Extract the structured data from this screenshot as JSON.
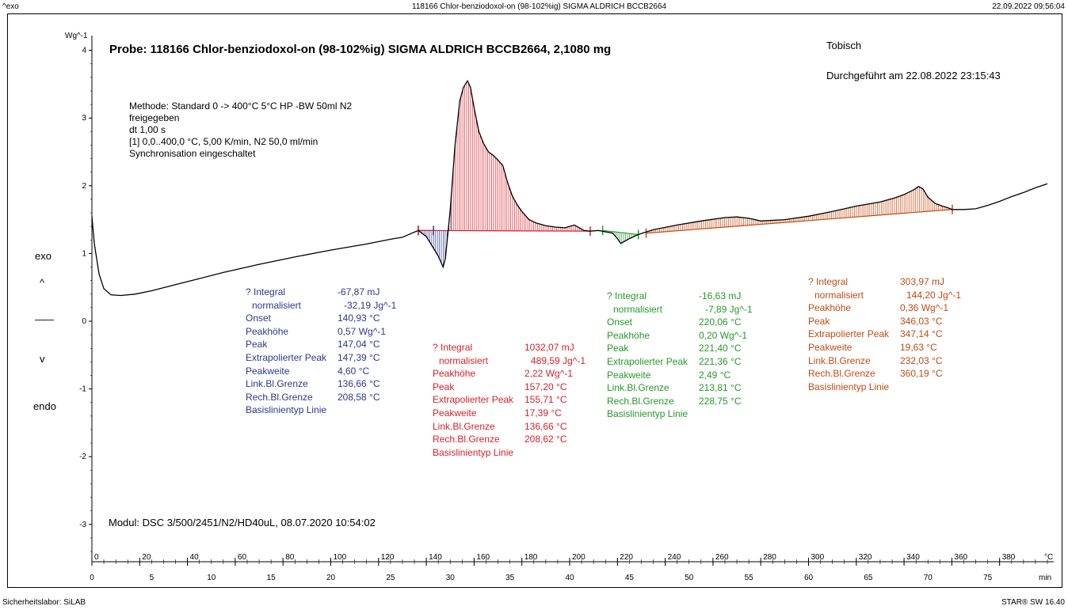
{
  "header": {
    "left": "^exo",
    "center": "118166 Chlor-benziodoxol-on (98-102%ig) SIGMA ALDRICH  BCCB2664",
    "right": "22.09.2022 09:56:04"
  },
  "footer": {
    "left": "Sicherheitslabor: SiLAB",
    "right": "STAR® SW 16.40"
  },
  "side_labels": {
    "exo": "exo",
    "up": "^",
    "dash": "——",
    "down": "v",
    "endo": "endo"
  },
  "title": "Probe: 118166 Chlor-benziodoxol-on (98-102%ig) SIGMA ALDRICH  BCCB2664, 2,1080 mg",
  "operator": "Tobisch",
  "performed": "Durchgeführt am 22.08.2022 23:15:43",
  "method": [
    "Methode: Standard 0 -> 400°C 5°C HP -BW 50ml N2",
    "freigegeben",
    "dt 1,00 s",
    "[1] 0,0..400,0 °C, 5,00 K/min, N2 50,0 ml/min",
    "Synchronisation eingeschaltet"
  ],
  "module": "Modul: DSC 3/500/2451/N2/HD40uL, 08.07.2020 10:54:02",
  "results": {
    "blue": [
      {
        "label": "? Integral",
        "value": "-67,87 mJ"
      },
      {
        "label": "normalisiert",
        "value": "-32,19 Jg^-1",
        "indent": true
      },
      {
        "label": "Onset",
        "value": "140,93 °C"
      },
      {
        "label": "Peakhöhe",
        "value": "0,57 Wg^-1"
      },
      {
        "label": "Peak",
        "value": "147,04 °C"
      },
      {
        "label": "Extrapolierter Peak",
        "value": "147,39 °C"
      },
      {
        "label": "Peakweite",
        "value": "4,60 °C"
      },
      {
        "label": "Link.Bl.Grenze",
        "value": "136,66 °C"
      },
      {
        "label": "Rech.Bl.Grenze",
        "value": "208,58 °C"
      },
      {
        "label": "Basislinientyp  Linie",
        "value": ""
      }
    ],
    "red": [
      {
        "label": "? Integral",
        "value": "1032,07 mJ"
      },
      {
        "label": "normalisiert",
        "value": "489,59 Jg^-1",
        "indent": true
      },
      {
        "label": "Peakhöhe",
        "value": "2,22 Wg^-1"
      },
      {
        "label": "Peak",
        "value": "157,20 °C"
      },
      {
        "label": "Extrapolierter Peak",
        "value": "155,71 °C"
      },
      {
        "label": "Peakweite",
        "value": "17,39 °C"
      },
      {
        "label": "Link.Bl.Grenze",
        "value": "136,66 °C"
      },
      {
        "label": "Rech.Bl.Grenze",
        "value": "208,62 °C"
      },
      {
        "label": "Basislinientyp  Linie",
        "value": ""
      }
    ],
    "green": [
      {
        "label": "? Integral",
        "value": "-16,63 mJ"
      },
      {
        "label": "normalisiert",
        "value": "-7,89 Jg^-1",
        "indent": true
      },
      {
        "label": "Onset",
        "value": "220,06 °C"
      },
      {
        "label": "Peakhöhe",
        "value": "0,20 Wg^-1"
      },
      {
        "label": "Peak",
        "value": "221,40 °C"
      },
      {
        "label": "Extrapolierter Peak",
        "value": "221,36 °C"
      },
      {
        "label": "Peakweite",
        "value": "2,49 °C"
      },
      {
        "label": "Link.Bl.Grenze",
        "value": "213,81 °C"
      },
      {
        "label": "Rech.Bl.Grenze",
        "value": "228,75 °C"
      },
      {
        "label": "Basislinientyp  Linie",
        "value": ""
      }
    ],
    "orange": [
      {
        "label": "? Integral",
        "value": "303,97 mJ"
      },
      {
        "label": "normalisiert",
        "value": "144,20 Jg^-1",
        "indent": true
      },
      {
        "label": "Peakhöhe",
        "value": "0,36 Wg^-1"
      },
      {
        "label": "Peak",
        "value": "346,03 °C"
      },
      {
        "label": "Extrapolierter Peak",
        "value": "347,14 °C"
      },
      {
        "label": "Peakweite",
        "value": "19,63 °C"
      },
      {
        "label": "Link.Bl.Grenze",
        "value": "232,03 °C"
      },
      {
        "label": "Rech.Bl.Grenze",
        "value": "360,19 °C"
      },
      {
        "label": "Basislinientyp  Linie",
        "value": ""
      }
    ]
  },
  "colors": {
    "blue": "#2a3a8a",
    "red": "#d9202a",
    "green": "#239a2a",
    "orange": "#c24a14",
    "curve": "#000000"
  },
  "chart_data": {
    "type": "line",
    "title": "Probe: 118166 Chlor-benziodoxol-on (98-102%ig) SIGMA ALDRICH  BCCB2664, 2,1080 mg",
    "ylabel": "Wg^-1",
    "xlabel": "°C",
    "xlabel2": "min",
    "xlim": [
      0,
      400
    ],
    "ylim": [
      -3.5,
      4.3
    ],
    "x2lim": [
      0,
      80
    ],
    "x_ticks": [
      0,
      20,
      40,
      60,
      80,
      100,
      120,
      140,
      160,
      180,
      200,
      220,
      240,
      260,
      280,
      300,
      320,
      340,
      360,
      380
    ],
    "x2_ticks": [
      0,
      5,
      10,
      15,
      20,
      25,
      30,
      35,
      40,
      45,
      50,
      55,
      60,
      65,
      70,
      75
    ],
    "y_ticks": [
      -3,
      -2,
      -1,
      0,
      1,
      2,
      3,
      4
    ],
    "grid": false,
    "series": [
      {
        "x": [
          0,
          1,
          3,
          5,
          8,
          12,
          18,
          25,
          35,
          45,
          55,
          70,
          85,
          100,
          115,
          125,
          130,
          136.66,
          140,
          143,
          145,
          147.04,
          148,
          150,
          152,
          154,
          155.5,
          157.2,
          158.5,
          160,
          162,
          164,
          166,
          168,
          170,
          172,
          174,
          176,
          178,
          180,
          183,
          186,
          190,
          194,
          198,
          202,
          204,
          206,
          208.6,
          212,
          215,
          218,
          220,
          221.4,
          223,
          225,
          228.75,
          235,
          245,
          255,
          265,
          270,
          275,
          280,
          290,
          300,
          310,
          320,
          330,
          336,
          340,
          344,
          346.03,
          348,
          350,
          353,
          356,
          358,
          360.19,
          365,
          370,
          375,
          380,
          385,
          390,
          395,
          400
        ],
        "y": [
          1.55,
          1.15,
          0.7,
          0.48,
          0.39,
          0.38,
          0.4,
          0.45,
          0.54,
          0.63,
          0.72,
          0.84,
          0.95,
          1.05,
          1.14,
          1.21,
          1.24,
          1.34,
          1.25,
          1.08,
          0.96,
          0.8,
          0.93,
          1.65,
          2.6,
          3.25,
          3.45,
          3.55,
          3.45,
          3.15,
          2.8,
          2.62,
          2.5,
          2.45,
          2.38,
          2.3,
          2.05,
          1.85,
          1.72,
          1.62,
          1.5,
          1.45,
          1.41,
          1.39,
          1.38,
          1.42,
          1.38,
          1.34,
          1.33,
          1.34,
          1.32,
          1.3,
          1.22,
          1.15,
          1.18,
          1.22,
          1.28,
          1.35,
          1.42,
          1.48,
          1.53,
          1.54,
          1.52,
          1.48,
          1.5,
          1.55,
          1.62,
          1.7,
          1.76,
          1.82,
          1.87,
          1.94,
          1.99,
          1.95,
          1.83,
          1.74,
          1.7,
          1.68,
          1.65,
          1.65,
          1.66,
          1.71,
          1.77,
          1.84,
          1.9,
          1.97,
          2.03
        ]
      }
    ],
    "integration_regions": [
      {
        "color": "blue",
        "baseline": [
          [
            136.66,
            1.34
          ],
          [
            143,
            1.34
          ]
        ],
        "range": [
          136.66,
          151
        ]
      },
      {
        "color": "red",
        "baseline": [
          [
            136.66,
            1.34
          ],
          [
            208.62,
            1.33
          ]
        ],
        "range": [
          150.5,
          208.62
        ]
      },
      {
        "color": "green",
        "baseline": [
          [
            213.81,
            1.34
          ],
          [
            228.75,
            1.28
          ]
        ],
        "range": [
          213.81,
          228.75
        ]
      },
      {
        "color": "orange",
        "baseline": [
          [
            232.03,
            1.3
          ],
          [
            360.19,
            1.65
          ]
        ],
        "range": [
          232.03,
          360.19
        ]
      }
    ]
  }
}
